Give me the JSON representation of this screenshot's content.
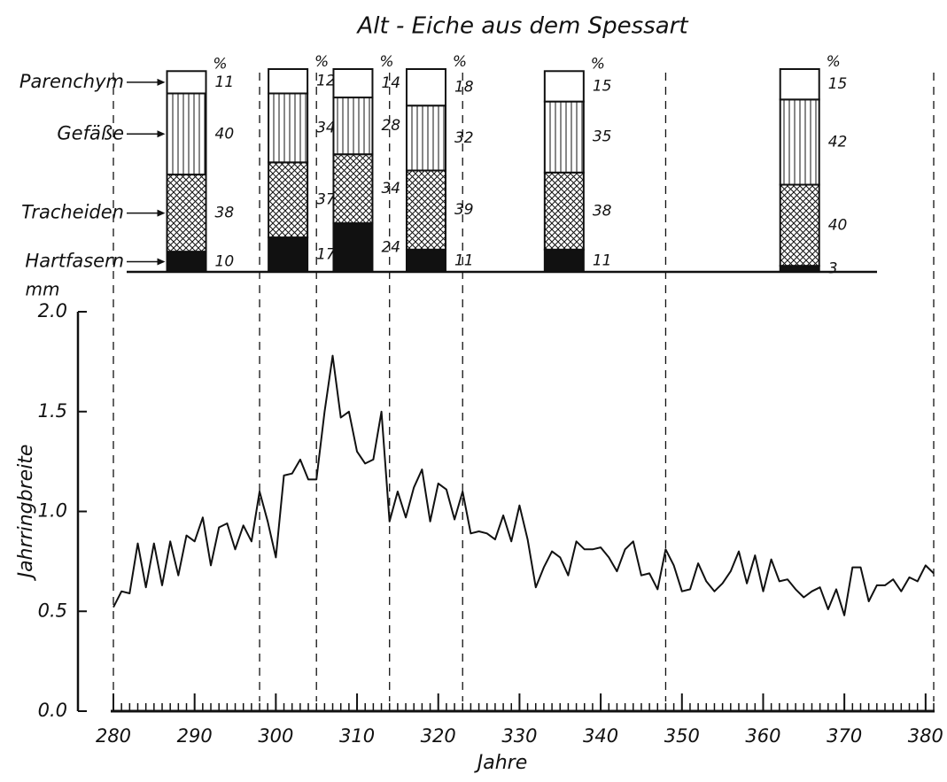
{
  "chart_data": [
    {
      "type": "line",
      "title": "Alt - Eiche aus dem Spessart",
      "x_label": "Jahre",
      "y_label": "Jahrringbreite",
      "y_unit": "mm",
      "x": [
        280,
        281,
        282,
        283,
        284,
        285,
        286,
        287,
        288,
        289,
        290,
        291,
        292,
        293,
        294,
        295,
        296,
        297,
        298,
        299,
        300,
        301,
        302,
        303,
        304,
        305,
        306,
        307,
        308,
        309,
        310,
        311,
        312,
        313,
        314,
        315,
        316,
        317,
        318,
        319,
        320,
        321,
        322,
        323,
        324,
        325,
        326,
        327,
        328,
        329,
        330,
        331,
        332,
        333,
        334,
        335,
        336,
        337,
        338,
        339,
        340,
        341,
        342,
        343,
        344,
        345,
        346,
        347,
        348,
        349,
        350,
        351,
        352,
        353,
        354,
        355,
        356,
        357,
        358,
        359,
        360,
        361,
        362,
        363,
        364,
        365,
        366,
        367,
        368,
        369,
        370,
        371,
        372,
        373,
        374,
        375,
        376,
        377,
        378,
        379,
        380,
        381
      ],
      "series": [
        {
          "color": "#111111",
          "values": [
            0.52,
            0.6,
            0.59,
            0.84,
            0.62,
            0.84,
            0.63,
            0.85,
            0.68,
            0.88,
            0.85,
            0.97,
            0.73,
            0.92,
            0.94,
            0.81,
            0.93,
            0.85,
            1.1,
            0.95,
            0.77,
            1.18,
            1.19,
            1.26,
            1.16,
            1.16,
            1.5,
            1.78,
            1.47,
            1.5,
            1.3,
            1.24,
            1.26,
            1.5,
            0.95,
            1.1,
            0.97,
            1.12,
            1.21,
            0.95,
            1.14,
            1.11,
            0.96,
            1.1,
            0.89,
            0.9,
            0.89,
            0.86,
            0.98,
            0.85,
            1.03,
            0.86,
            0.62,
            0.72,
            0.8,
            0.77,
            0.68,
            0.85,
            0.81,
            0.81,
            0.82,
            0.77,
            0.7,
            0.81,
            0.85,
            0.68,
            0.69,
            0.61,
            0.81,
            0.73,
            0.6,
            0.61,
            0.74,
            0.65,
            0.6,
            0.64,
            0.7,
            0.8,
            0.64,
            0.78,
            0.6,
            0.76,
            0.65,
            0.66,
            0.61,
            0.57,
            0.6,
            0.62,
            0.51,
            0.61,
            0.48,
            0.72,
            0.72,
            0.55,
            0.63,
            0.63,
            0.66,
            0.6,
            0.67,
            0.65,
            0.73,
            0.69
          ]
        }
      ],
      "xlim": [
        280,
        381
      ],
      "xticks": [
        280,
        290,
        300,
        310,
        320,
        330,
        340,
        350,
        360,
        370,
        380
      ],
      "ylim": [
        0,
        2
      ],
      "yticks": [
        {
          "value": 0,
          "label": "0.0"
        },
        0.5,
        {
          "value": 1,
          "label": "1.0"
        },
        1.5,
        {
          "value": 2,
          "label": "2.0"
        }
      ]
    },
    {
      "type": "stacked_bar",
      "unit": "%",
      "period_bounds": [
        280,
        298,
        305,
        314,
        323,
        348,
        381
      ],
      "series": [
        {
          "name": "Hartfasern",
          "pattern": "solid",
          "values": [
            10,
            17,
            24,
            11,
            11,
            3
          ]
        },
        {
          "name": "Tracheiden",
          "pattern": "crosshatch",
          "values": [
            38,
            37,
            34,
            39,
            38,
            40
          ]
        },
        {
          "name": "Gefäße",
          "pattern": "vertical",
          "values": [
            40,
            34,
            28,
            32,
            35,
            42
          ]
        },
        {
          "name": "Parenchym",
          "pattern": "blank",
          "values": [
            11,
            12,
            14,
            18,
            15,
            15
          ]
        }
      ]
    }
  ]
}
